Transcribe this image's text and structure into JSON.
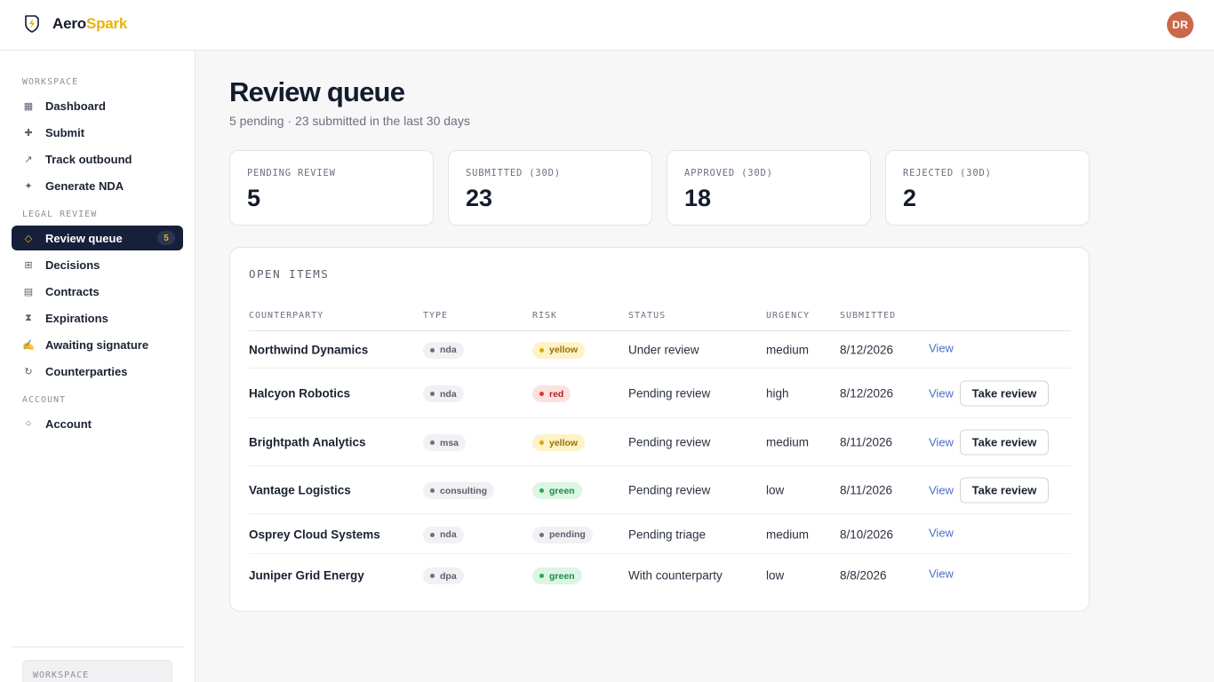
{
  "app": {
    "brand_part1": "Aero",
    "brand_part2": "Spark",
    "user_initials": "DR",
    "accent": "#e9b30c",
    "nav_active_bg": "#16203a"
  },
  "sidebar": {
    "sections": [
      {
        "title": "WORKSPACE",
        "items": [
          {
            "label": "Dashboard",
            "icon": "grid-icon"
          },
          {
            "label": "Submit",
            "icon": "plus-icon"
          },
          {
            "label": "Track outbound",
            "icon": "arrow-up-right-icon"
          },
          {
            "label": "Generate NDA",
            "icon": "sparkle-icon"
          }
        ]
      },
      {
        "title": "LEGAL REVIEW",
        "items": [
          {
            "label": "Review queue",
            "icon": "diamond-icon",
            "active": true,
            "badge": "5"
          },
          {
            "label": "Decisions",
            "icon": "grid-small-icon"
          },
          {
            "label": "Contracts",
            "icon": "document-icon"
          },
          {
            "label": "Expirations",
            "icon": "hourglass-icon"
          },
          {
            "label": "Awaiting signature",
            "icon": "pen-icon"
          },
          {
            "label": "Counterparties",
            "icon": "refresh-icon"
          }
        ]
      },
      {
        "title": "ACCOUNT",
        "items": [
          {
            "label": "Account",
            "icon": "circle-icon"
          }
        ]
      }
    ],
    "footer_label": "WORKSPACE"
  },
  "header": {
    "title": "Review queue",
    "subtitle": "5 pending · 23 submitted in the last 30 days"
  },
  "stats": [
    {
      "label": "PENDING REVIEW",
      "value": "5"
    },
    {
      "label": "SUBMITTED (30D)",
      "value": "23"
    },
    {
      "label": "APPROVED (30D)",
      "value": "18"
    },
    {
      "label": "REJECTED (30D)",
      "value": "2"
    }
  ],
  "table": {
    "title": "OPEN ITEMS",
    "columns": [
      "COUNTERPARTY",
      "TYPE",
      "RISK",
      "STATUS",
      "URGENCY",
      "SUBMITTED"
    ],
    "view_label": "View",
    "take_label": "Take review",
    "rows": [
      {
        "counterparty": "Northwind Dynamics",
        "type": "nda",
        "risk": "yellow",
        "risk_tone": "yellow",
        "status": "Under review",
        "urgency": "medium",
        "submitted": "8/12/2026",
        "can_take": false
      },
      {
        "counterparty": "Halcyon Robotics",
        "type": "nda",
        "risk": "red",
        "risk_tone": "red",
        "status": "Pending review",
        "urgency": "high",
        "submitted": "8/12/2026",
        "can_take": true
      },
      {
        "counterparty": "Brightpath Analytics",
        "type": "msa",
        "risk": "yellow",
        "risk_tone": "yellow",
        "status": "Pending review",
        "urgency": "medium",
        "submitted": "8/11/2026",
        "can_take": true
      },
      {
        "counterparty": "Vantage Logistics",
        "type": "consulting",
        "risk": "green",
        "risk_tone": "green",
        "status": "Pending review",
        "urgency": "low",
        "submitted": "8/11/2026",
        "can_take": true
      },
      {
        "counterparty": "Osprey Cloud Systems",
        "type": "nda",
        "risk": "pending",
        "risk_tone": "neutral",
        "status": "Pending triage",
        "urgency": "medium",
        "submitted": "8/10/2026",
        "can_take": false
      },
      {
        "counterparty": "Juniper Grid Energy",
        "type": "dpa",
        "risk": "green",
        "risk_tone": "green",
        "status": "With counterparty",
        "urgency": "low",
        "submitted": "8/8/2026",
        "can_take": false
      }
    ]
  }
}
